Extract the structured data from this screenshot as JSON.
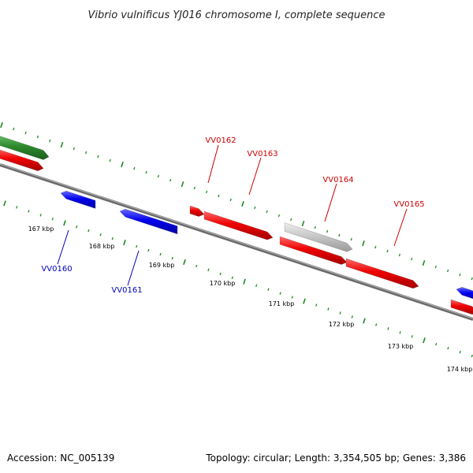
{
  "title": "Vibrio vulnificus YJ016 chromosome I, complete sequence",
  "footer": {
    "accession": "Accession: NC_005139",
    "stats": "Topology: circular; Length: 3,354,505 bp; Genes: 3,386"
  },
  "colors": {
    "forward_gene": "#ee0000",
    "reverse_gene": "#0000ee",
    "rna_gene": "#2e8b2e",
    "other_feature": "#c8c8c8",
    "backbone": "#777777",
    "tick": "#1e8a1e",
    "forward_label": "#cc0000",
    "reverse_label": "#0000bb"
  },
  "scale_ticks": [
    {
      "label": "167 kbp"
    },
    {
      "label": "168 kbp"
    },
    {
      "label": "169 kbp"
    },
    {
      "label": "170 kbp"
    },
    {
      "label": "171 kbp"
    },
    {
      "label": "172 kbp"
    },
    {
      "label": "173 kbp"
    },
    {
      "label": "174 kbp"
    }
  ],
  "gene_labels": [
    {
      "text": "VV0160",
      "strand": "reverse"
    },
    {
      "text": "VV0161",
      "strand": "reverse"
    },
    {
      "text": "VV0162",
      "strand": "forward"
    },
    {
      "text": "VV0163",
      "strand": "forward"
    },
    {
      "text": "VV0164",
      "strand": "forward"
    },
    {
      "text": "VV0165",
      "strand": "forward"
    }
  ]
}
